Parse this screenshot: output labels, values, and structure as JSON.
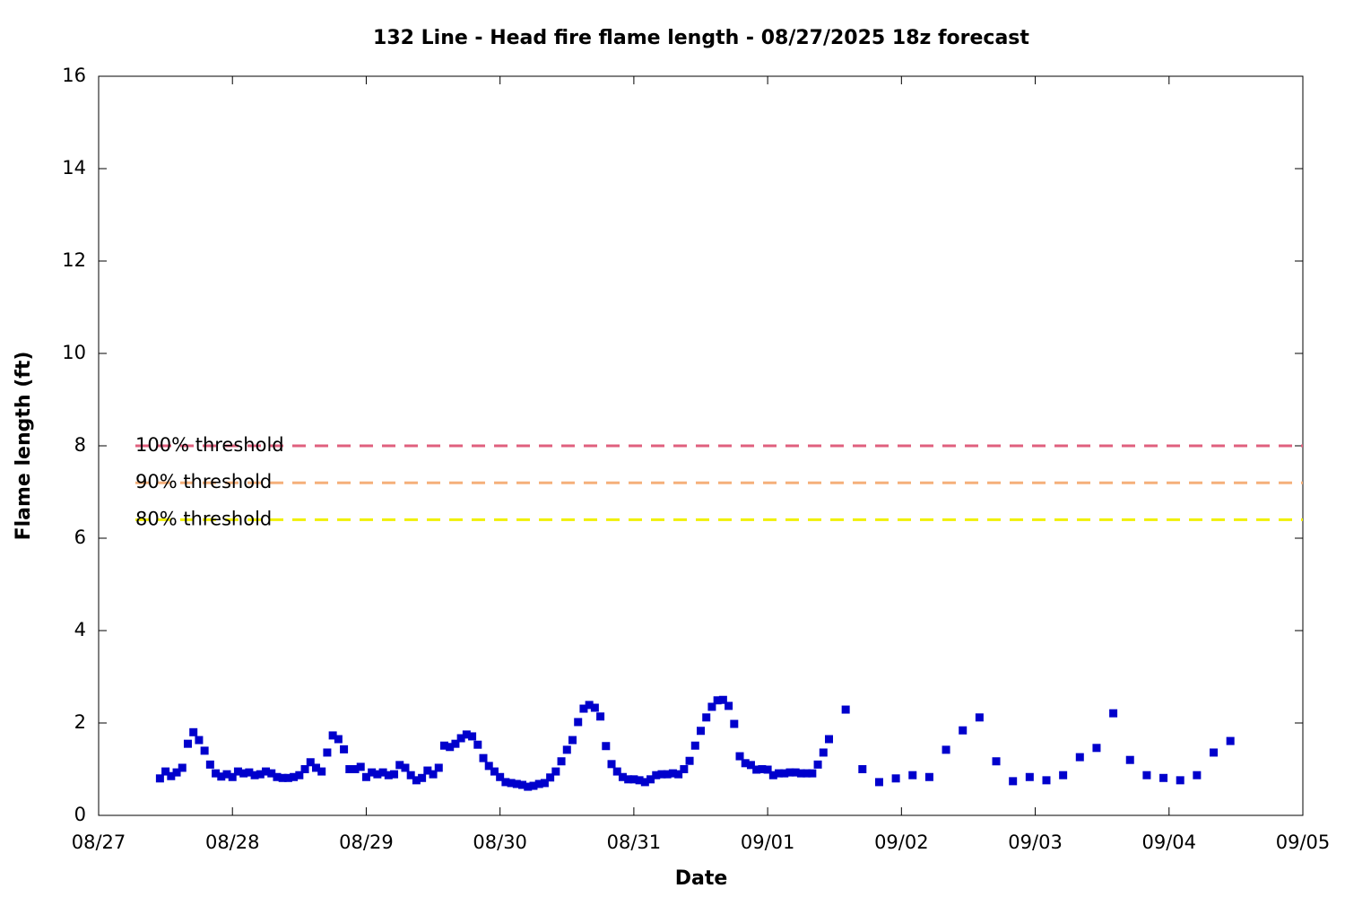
{
  "chart_data": {
    "type": "scatter",
    "title": "132 Line - Head fire flame length - 08/27/2025 18z forecast",
    "xlabel": "Date",
    "ylabel": "Flame length (ft)",
    "xlim": [
      0,
      216
    ],
    "xticks": [
      {
        "value": 0,
        "label": "08/27"
      },
      {
        "value": 24,
        "label": "08/28"
      },
      {
        "value": 48,
        "label": "08/29"
      },
      {
        "value": 72,
        "label": "08/30"
      },
      {
        "value": 96,
        "label": "08/31"
      },
      {
        "value": 120,
        "label": "09/01"
      },
      {
        "value": 144,
        "label": "09/02"
      },
      {
        "value": 168,
        "label": "09/03"
      },
      {
        "value": 192,
        "label": "09/04"
      },
      {
        "value": 216,
        "label": "09/05"
      }
    ],
    "ylim": [
      0,
      16
    ],
    "yticks": [
      0,
      2,
      4,
      6,
      8,
      10,
      12,
      14,
      16
    ],
    "thresholds": [
      {
        "name": "100% threshold",
        "value": 8,
        "color": "#e0607e"
      },
      {
        "name": "90% threshold",
        "value": 7.2,
        "color": "#f5b07a"
      },
      {
        "name": "80% threshold",
        "value": 6.4,
        "color": "#f0f000"
      }
    ],
    "series": [
      {
        "color": "#0000cc",
        "x": [
          11,
          12,
          13,
          14,
          15,
          16,
          17,
          18,
          19,
          20,
          21,
          22,
          23,
          24,
          25,
          26,
          27,
          28,
          29,
          30,
          31,
          32,
          33,
          34,
          35,
          36,
          37,
          38,
          39,
          40,
          41,
          42,
          43,
          44,
          45,
          46,
          47,
          48,
          49,
          50,
          51,
          52,
          53,
          54,
          55,
          56,
          57,
          58,
          59,
          60,
          61,
          62,
          63,
          64,
          65,
          66,
          67,
          68,
          69,
          70,
          71,
          72,
          73,
          74,
          75,
          76,
          77,
          78,
          79,
          80,
          81,
          82,
          83,
          84,
          85,
          86,
          87,
          88,
          89,
          90,
          91,
          92,
          93,
          94,
          95,
          96,
          97,
          98,
          99,
          100,
          101,
          102,
          103,
          104,
          105,
          106,
          107,
          108,
          109,
          110,
          111,
          112,
          113,
          114,
          115,
          116,
          117,
          118,
          119,
          120,
          121,
          122,
          123,
          124,
          125,
          126,
          127,
          128,
          129,
          130,
          131,
          134,
          137,
          140,
          143,
          146,
          149,
          152,
          155,
          158,
          161,
          164,
          167,
          170,
          173,
          176,
          179,
          182,
          185,
          188,
          191,
          194,
          197,
          200,
          203
        ],
        "values": [
          0.8,
          0.95,
          0.85,
          0.93,
          1.03,
          1.55,
          1.8,
          1.63,
          1.4,
          1.1,
          0.91,
          0.84,
          0.89,
          0.83,
          0.95,
          0.91,
          0.93,
          0.87,
          0.89,
          0.95,
          0.91,
          0.83,
          0.81,
          0.81,
          0.83,
          0.87,
          1.0,
          1.15,
          1.03,
          0.95,
          1.36,
          1.73,
          1.65,
          1.43,
          1.0,
          1.0,
          1.05,
          0.83,
          0.93,
          0.89,
          0.93,
          0.87,
          0.89,
          1.09,
          1.03,
          0.87,
          0.76,
          0.81,
          0.97,
          0.89,
          1.03,
          1.51,
          1.48,
          1.55,
          1.67,
          1.75,
          1.71,
          1.53,
          1.24,
          1.07,
          0.95,
          0.83,
          0.72,
          0.7,
          0.68,
          0.66,
          0.62,
          0.64,
          0.68,
          0.7,
          0.82,
          0.95,
          1.17,
          1.42,
          1.63,
          2.02,
          2.31,
          2.39,
          2.33,
          2.14,
          1.5,
          1.11,
          0.95,
          0.83,
          0.78,
          0.78,
          0.76,
          0.72,
          0.78,
          0.87,
          0.89,
          0.89,
          0.91,
          0.89,
          1.0,
          1.18,
          1.51,
          1.83,
          2.12,
          2.35,
          2.49,
          2.5,
          2.37,
          1.98,
          1.28,
          1.13,
          1.09,
          0.99,
          1.0,
          0.99,
          0.87,
          0.91,
          0.91,
          0.93,
          0.93,
          0.91,
          0.91,
          0.91,
          1.1,
          1.36,
          1.65,
          2.29,
          1.0,
          0.72,
          0.8,
          0.87,
          0.83,
          1.42,
          1.84,
          2.12,
          1.17,
          0.74,
          0.83,
          0.76,
          0.87,
          1.26,
          1.46,
          2.21,
          1.2,
          0.87,
          0.81,
          0.76,
          0.87,
          1.36,
          1.61
        ]
      }
    ]
  }
}
